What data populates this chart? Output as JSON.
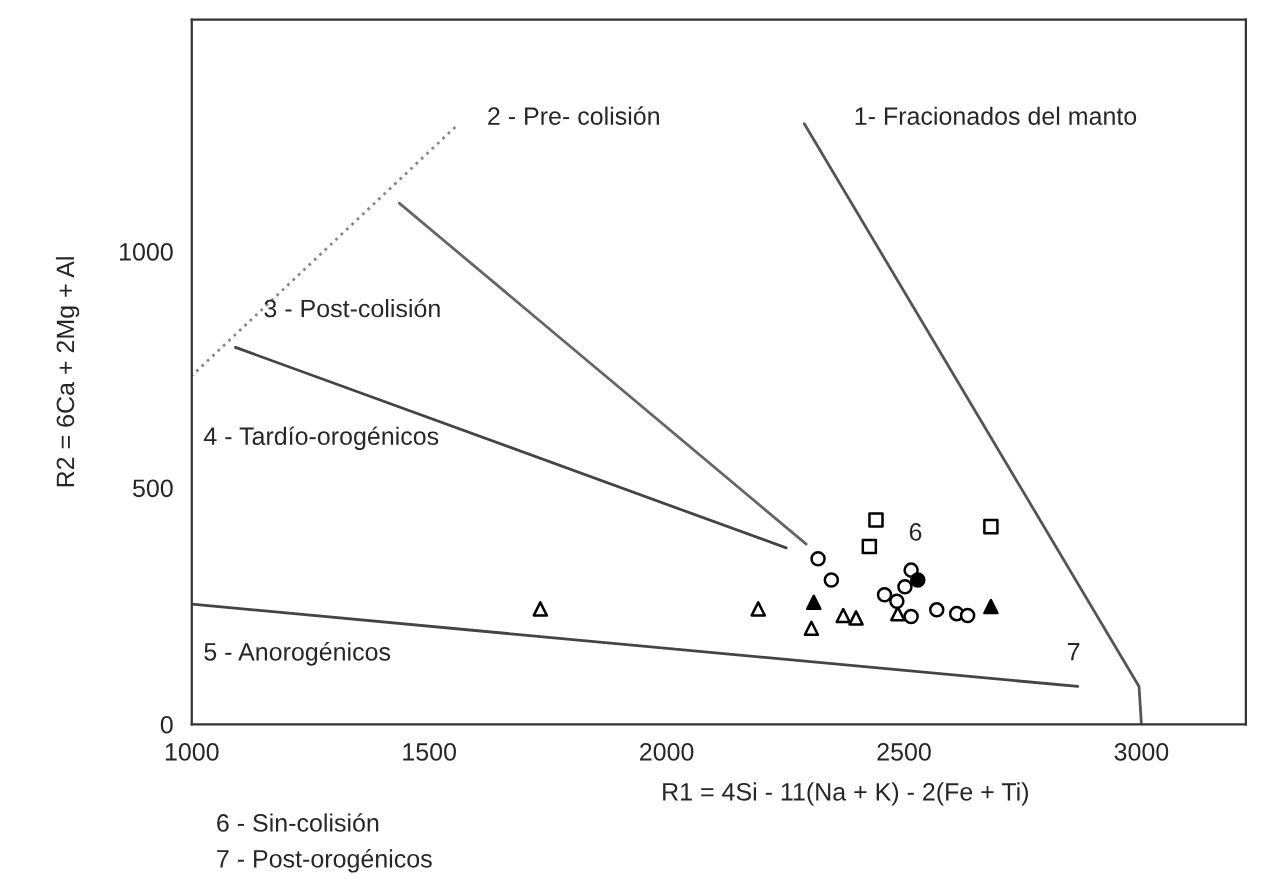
{
  "chart_data": {
    "type": "scatter",
    "xlabel": "R1 = 4Si - 11(Na + K) - 2(Fe + Ti)",
    "ylabel": "R2 = 6Ca + 2Mg + Al",
    "xlim": [
      1000,
      3220
    ],
    "ylim": [
      0,
      1490
    ],
    "xticks": [
      1000,
      1500,
      2000,
      2500,
      3000
    ],
    "yticks": [
      0,
      500,
      1000
    ],
    "grid": false,
    "legend": false,
    "series": [
      {
        "type": "line",
        "color": "#555555",
        "line_style": "solid",
        "x": [
          2290,
          2995,
          3000
        ],
        "values": [
          1270,
          80,
          0
        ]
      },
      {
        "type": "line",
        "color": "#888888",
        "line_style": "dotted",
        "x": [
          1555,
          1000
        ],
        "values": [
          1263,
          737
        ]
      },
      {
        "type": "line",
        "color": "#666666",
        "line_style": "solid",
        "x": [
          1437,
          2294
        ],
        "values": [
          1102,
          381
        ]
      },
      {
        "type": "line",
        "color": "#444444",
        "line_style": "solid",
        "x": [
          1092,
          2252
        ],
        "values": [
          797,
          373
        ]
      },
      {
        "type": "line",
        "color": "#444444",
        "line_style": "solid",
        "x": [
          1000,
          2866
        ],
        "values": [
          254,
          80
        ]
      },
      {
        "marker": "triangle",
        "color": "#ffffff",
        "x": [
          1734,
          2193,
          2305,
          2372,
          2399,
          2487
        ],
        "values": [
          244,
          244,
          203,
          230,
          225,
          234
        ]
      },
      {
        "marker": "triangle",
        "color": "#000000",
        "x": [
          2310,
          2683
        ],
        "values": [
          258,
          249
        ]
      },
      {
        "marker": "square",
        "color": "#ffffff",
        "x": [
          2441,
          2427,
          2683
        ],
        "values": [
          432,
          376,
          418
        ]
      },
      {
        "marker": "circle",
        "color": "#ffffff",
        "x": [
          2319,
          2347,
          2459,
          2515,
          2502,
          2515,
          2569,
          2611,
          2634,
          2485
        ],
        "values": [
          350,
          305,
          274,
          326,
          291,
          228,
          242,
          234,
          230,
          260
        ]
      },
      {
        "marker": "circle",
        "color": "#000000",
        "x": [
          2529
        ],
        "values": [
          305
        ]
      }
    ],
    "annotations": [
      "1- Fracionados del manto",
      "2 - Pre- colisión",
      "3 - Post-colisión",
      "4 - Tardío-orogénicos",
      "5 - Anorogénicos",
      "6",
      "7",
      "6 - Sin-colisión",
      "7 - Post-orogénicos"
    ]
  }
}
